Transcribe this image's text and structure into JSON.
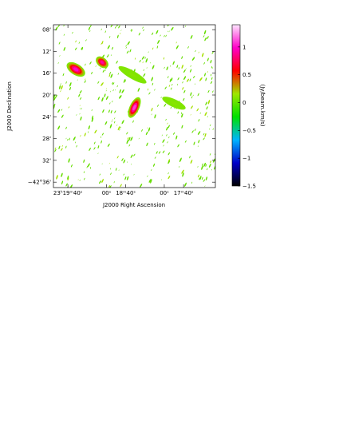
{
  "chart_data": {
    "type": "image",
    "x_label": "J2000 Right Ascension",
    "y_label": "J2000 Declination",
    "xlim": [
      1195,
      1027
    ],
    "ylim": [
      -2557,
      -2527.1
    ],
    "xticks": [
      {
        "value": 1180,
        "label": "23ʰ19ᵐ40ˢ"
      },
      {
        "value": 1140,
        "label": "00ˢ"
      },
      {
        "value": 1120,
        "label": "18ᵐ40ˢ"
      },
      {
        "value": 1080,
        "label": "00ˢ"
      },
      {
        "value": 1060,
        "label": "17ᵐ40ˢ"
      }
    ],
    "yticks": [
      {
        "value": -2528,
        "label": "08'"
      },
      {
        "value": -2532,
        "label": "12'"
      },
      {
        "value": -2536,
        "label": "16'"
      },
      {
        "value": -2540,
        "label": "20'"
      },
      {
        "value": -2544,
        "label": "24'"
      },
      {
        "value": -2548,
        "label": "28'"
      },
      {
        "value": -2552,
        "label": "32'"
      },
      {
        "value": -2556,
        "label": "−42°36'"
      }
    ],
    "colorbar_label": "(Jy/beam.km/s)",
    "clim": [
      -1.5,
      1.4
    ],
    "cticks": [
      1,
      0.5,
      0,
      {
        "value": -0.5,
        "label": "−0.5"
      },
      {
        "value": -1,
        "label": "−1"
      },
      {
        "value": -1.5,
        "label": "−1.5"
      }
    ],
    "colormap": [
      "#000000",
      "#0000c8",
      "#00b4ff",
      "#00e000",
      "#9ee600",
      "#ff0000",
      "#ff00c8",
      "#ffe6ff"
    ],
    "sources": [
      {
        "ra": 1171.7,
        "dec": -2535.3,
        "peak": 1.0
      },
      {
        "ra": 1144.5,
        "dec": -2534.0,
        "peak": 0.9
      },
      {
        "ra": 1111.0,
        "dec": -2542.3,
        "peak": 1.1
      },
      {
        "ra": 1113.0,
        "dec": -2536.3,
        "peak": 0.1
      },
      {
        "ra": 1070.0,
        "dec": -2541.5,
        "peak": 0.1
      }
    ]
  }
}
